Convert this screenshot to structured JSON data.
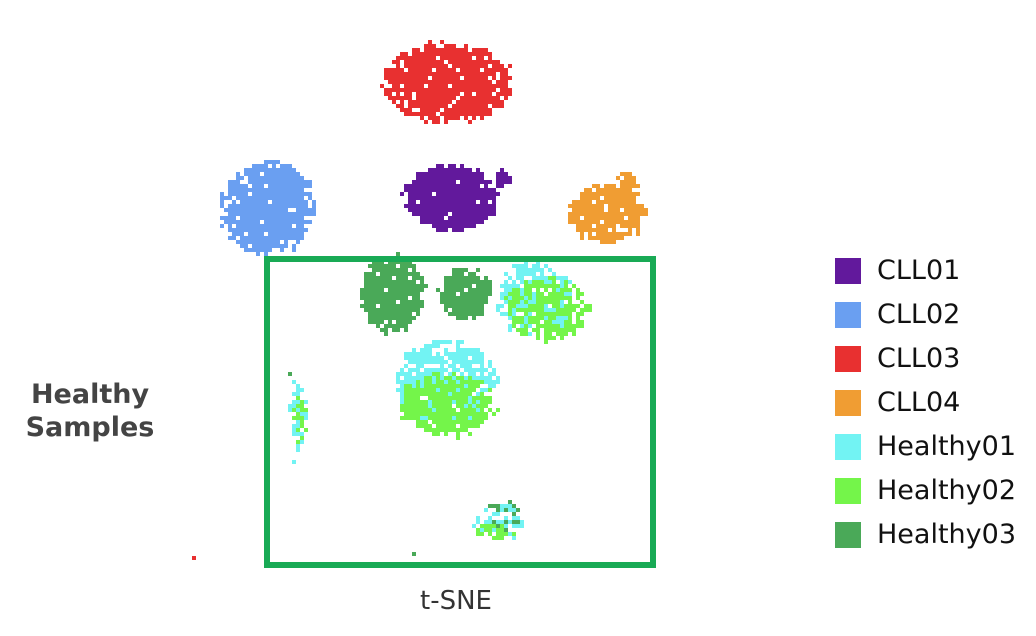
{
  "chart_data": {
    "type": "scatter",
    "title": "",
    "xlabel": "t-SNE",
    "annotation": {
      "line1": "Healthy",
      "line2": "Samples",
      "box_color": "#19aa55"
    },
    "legend": "right",
    "grid": false,
    "series": [
      {
        "name": "CLL01",
        "color": "#62199c",
        "clusters": [
          {
            "cx": -0.4,
            "cy": 4.7,
            "rx": 2.55,
            "ry": 1.65,
            "n": 900
          },
          {
            "cx": 2.5,
            "cy": 5.7,
            "rx": 0.35,
            "ry": 0.35,
            "n": 35
          }
        ]
      },
      {
        "name": "CLL02",
        "color": "#6a9ff1",
        "clusters": [
          {
            "cx": -10.7,
            "cy": 4.2,
            "rx": 2.6,
            "ry": 2.35,
            "n": 950
          }
        ]
      },
      {
        "name": "CLL03",
        "color": "#e83030",
        "clusters": [
          {
            "cx": -0.6,
            "cy": 10.6,
            "rx": 3.6,
            "ry": 1.95,
            "n": 1100
          }
        ]
      },
      {
        "name": "CLL04",
        "color": "#f09d33",
        "clusters": [
          {
            "cx": 8.4,
            "cy": 3.9,
            "rx": 2.1,
            "ry": 1.5,
            "n": 420
          },
          {
            "cx": 9.6,
            "cy": 5.5,
            "rx": 0.55,
            "ry": 0.5,
            "n": 40
          }
        ]
      },
      {
        "name": "Healthy01",
        "color": "#72f3f3",
        "clusters": [
          {
            "cx": 4.4,
            "cy": -0.5,
            "rx": 2.2,
            "ry": 1.9,
            "n": 330
          },
          {
            "cx": -0.7,
            "cy": -4.7,
            "rx": 2.8,
            "ry": 2.1,
            "n": 650
          },
          {
            "cx": -9.0,
            "cy": -6.3,
            "rx": 0.45,
            "ry": 1.85,
            "n": 65
          },
          {
            "cx": 2.3,
            "cy": -11.9,
            "rx": 1.6,
            "ry": 0.85,
            "n": 60
          }
        ]
      },
      {
        "name": "Healthy02",
        "color": "#74f54a",
        "clusters": [
          {
            "cx": 5.0,
            "cy": -1.0,
            "rx": 2.4,
            "ry": 1.6,
            "n": 280
          },
          {
            "cx": -0.6,
            "cy": -5.9,
            "rx": 2.6,
            "ry": 1.6,
            "n": 500
          },
          {
            "cx": -8.9,
            "cy": -6.8,
            "rx": 0.4,
            "ry": 1.3,
            "n": 25
          },
          {
            "cx": 2.1,
            "cy": -12.4,
            "rx": 1.3,
            "ry": 0.55,
            "n": 30
          }
        ]
      },
      {
        "name": "Healthy03",
        "color": "#4aa958",
        "clusters": [
          {
            "cx": -3.7,
            "cy": -0.2,
            "rx": 1.75,
            "ry": 1.95,
            "n": 520
          },
          {
            "cx": 0.4,
            "cy": -0.2,
            "rx": 1.4,
            "ry": 1.3,
            "n": 300
          },
          {
            "cx": 2.6,
            "cy": -11.5,
            "rx": 0.9,
            "ry": 0.9,
            "n": 18
          }
        ]
      }
    ],
    "outliers": [
      {
        "series": "CLL03",
        "x": -14.9,
        "y": -13.8
      },
      {
        "series": "Healthy03",
        "x": -2.5,
        "y": -13.5
      },
      {
        "series": "Healthy03",
        "x": -9.5,
        "y": -4.4
      },
      {
        "series": "Healthy01",
        "x": -9.2,
        "y": -8.9
      }
    ],
    "xlim": [
      -15,
      16
    ],
    "ylim": [
      -15,
      14
    ]
  }
}
